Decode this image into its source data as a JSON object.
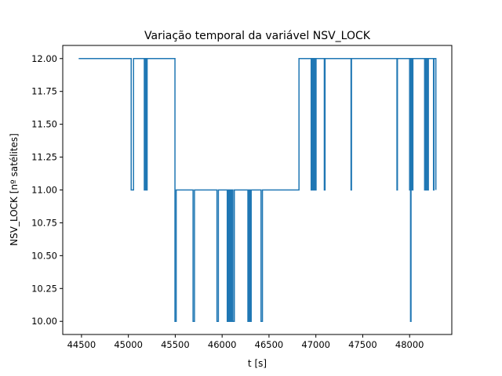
{
  "chart_data": {
    "type": "line",
    "drawstyle": "steps-post",
    "title": "Variação temporal da variável NSV_LOCK",
    "xlabel": "t [s]",
    "ylabel": "NSV_LOCK [nº satélites]",
    "xlim": [
      44300,
      48450
    ],
    "ylim": [
      9.9,
      12.1
    ],
    "xticks": [
      44500,
      45000,
      45500,
      46000,
      46500,
      47000,
      47500,
      48000
    ],
    "yticks": [
      "10.00",
      "10.25",
      "10.50",
      "10.75",
      "11.00",
      "11.25",
      "11.50",
      "11.75",
      "12.00"
    ],
    "grid": false,
    "legend": "none",
    "color": "#1f77b4",
    "series": [
      {
        "points": [
          [
            44470,
            12
          ],
          [
            45030,
            11
          ],
          [
            45055,
            12
          ],
          [
            45170,
            11
          ],
          [
            45178,
            12
          ],
          [
            45183,
            11
          ],
          [
            45187,
            12
          ],
          [
            45193,
            11
          ],
          [
            45200,
            12
          ],
          [
            45497,
            10
          ],
          [
            45510,
            11
          ],
          [
            45690,
            10
          ],
          [
            45705,
            11
          ],
          [
            45945,
            10
          ],
          [
            45960,
            11
          ],
          [
            46055,
            10
          ],
          [
            46065,
            11
          ],
          [
            46070,
            10
          ],
          [
            46080,
            11
          ],
          [
            46090,
            10
          ],
          [
            46095,
            11
          ],
          [
            46105,
            10
          ],
          [
            46110,
            11
          ],
          [
            46115,
            10
          ],
          [
            46130,
            11
          ],
          [
            46275,
            10
          ],
          [
            46285,
            11
          ],
          [
            46290,
            10
          ],
          [
            46300,
            11
          ],
          [
            46305,
            10
          ],
          [
            46310,
            11
          ],
          [
            46415,
            10
          ],
          [
            46430,
            11
          ],
          [
            46820,
            12
          ],
          [
            46950,
            11
          ],
          [
            46955,
            12
          ],
          [
            46960,
            11
          ],
          [
            46966,
            12
          ],
          [
            46972,
            11
          ],
          [
            46978,
            12
          ],
          [
            46984,
            11
          ],
          [
            46990,
            12
          ],
          [
            46996,
            11
          ],
          [
            47002,
            12
          ],
          [
            47090,
            11
          ],
          [
            47098,
            12
          ],
          [
            47375,
            11
          ],
          [
            47380,
            12
          ],
          [
            47865,
            11
          ],
          [
            47870,
            12
          ],
          [
            48000,
            11
          ],
          [
            48005,
            12
          ],
          [
            48010,
            10
          ],
          [
            48015,
            12
          ],
          [
            48020,
            11
          ],
          [
            48025,
            12
          ],
          [
            48030,
            11
          ],
          [
            48035,
            12
          ],
          [
            48160,
            11
          ],
          [
            48166,
            12
          ],
          [
            48172,
            11
          ],
          [
            48178,
            12
          ],
          [
            48184,
            11
          ],
          [
            48190,
            12
          ],
          [
            48196,
            11
          ],
          [
            48200,
            12
          ],
          [
            48255,
            11
          ],
          [
            48260,
            12
          ],
          [
            48280,
            11
          ]
        ]
      }
    ]
  }
}
